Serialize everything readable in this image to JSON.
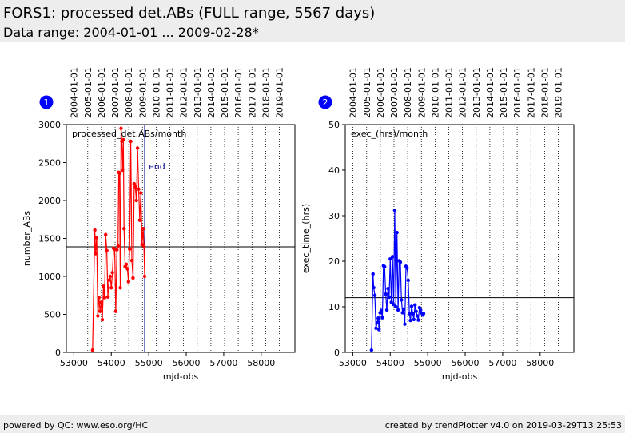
{
  "header": {
    "title": "FORS1: processed det.ABs (FULL range, 5567 days)",
    "subtitle": "Data range: 2004-01-01 ... 2009-02-28*"
  },
  "footer": {
    "left": "powered by QC: www.eso.org/HC",
    "right": "created by trendPlotter v4.0 on 2019-03-29T13:25:53"
  },
  "colors": {
    "header_bg": "#ededed",
    "badge": "#0000ff",
    "series1": "#ff0000",
    "series2": "#0000ff"
  },
  "chart_data": [
    {
      "type": "line",
      "badge": "1",
      "series_label": "processed_det.ABs/month",
      "xlabel": "mjd-obs",
      "ylabel": "number_ABs",
      "xlim": [
        52800,
        58900
      ],
      "ylim": [
        0,
        3000
      ],
      "xticks": [
        53000,
        54000,
        55000,
        56000,
        57000,
        58000
      ],
      "yticks": [
        0,
        500,
        1000,
        1500,
        2000,
        2500,
        3000
      ],
      "date_ticks": [
        "2004-01-01",
        "2005-01-01",
        "2006-01-01",
        "2007-01-01",
        "2008-01-01",
        "2009-01-01",
        "2010-01-01",
        "2011-01-01",
        "2012-01-01",
        "2013-01-01",
        "2014-01-01",
        "2015-01-01",
        "2016-01-01",
        "2017-01-01",
        "2018-01-01",
        "2019-01-01"
      ],
      "date_mjd": [
        53005,
        53371,
        53736,
        54101,
        54466,
        54832,
        55197,
        55562,
        55927,
        56293,
        56658,
        57023,
        57388,
        57754,
        58119,
        58484
      ],
      "reference_line": 1390,
      "end_marker": {
        "x": 54890,
        "label": "end"
      },
      "color": "#ff0000",
      "series": [
        {
          "x": [
            53500,
            53560,
            53580,
            53610,
            53640,
            53670,
            53700,
            53730,
            53760,
            53790,
            53820,
            53850,
            53880,
            53910,
            53940,
            53970,
            54000,
            54030,
            54060,
            54090,
            54120,
            54150,
            54180,
            54200,
            54220,
            54240,
            54260,
            54280,
            54300,
            54320,
            54340,
            54370,
            54400,
            54430,
            54460,
            54490,
            54520,
            54550,
            54580,
            54610,
            54640,
            54670,
            54700,
            54730,
            54760,
            54790,
            54820,
            54850,
            54870,
            54890
          ],
          "y": [
            30,
            1610,
            1300,
            1510,
            480,
            720,
            540,
            660,
            430,
            870,
            720,
            1550,
            1340,
            730,
            950,
            1000,
            850,
            1050,
            1370,
            1360,
            540,
            1350,
            1400,
            2370,
            2360,
            850,
            2950,
            2780,
            2400,
            2800,
            1630,
            1130,
            1160,
            1100,
            930,
            1360,
            2780,
            1210,
            980,
            2220,
            2180,
            2000,
            2690,
            2150,
            1740,
            2100,
            1420,
            1630,
            1400,
            1000
          ]
        }
      ]
    },
    {
      "type": "line",
      "badge": "2",
      "series_label": "exec_(hrs)/month",
      "xlabel": "mjd-obs",
      "ylabel": "exec_time_(hrs)",
      "xlim": [
        52800,
        58900
      ],
      "ylim": [
        0,
        50
      ],
      "xticks": [
        53000,
        54000,
        55000,
        56000,
        57000,
        58000
      ],
      "yticks": [
        0,
        10,
        20,
        30,
        40,
        50
      ],
      "date_ticks": [
        "2004-01-01",
        "2005-01-01",
        "2006-01-01",
        "2007-01-01",
        "2008-01-01",
        "2009-01-01",
        "2010-01-01",
        "2011-01-01",
        "2012-01-01",
        "2013-01-01",
        "2014-01-01",
        "2015-01-01",
        "2016-01-01",
        "2017-01-01",
        "2018-01-01",
        "2019-01-01"
      ],
      "date_mjd": [
        53005,
        53371,
        53736,
        54101,
        54466,
        54832,
        55197,
        55562,
        55927,
        56293,
        56658,
        57023,
        57388,
        57754,
        58119,
        58484
      ],
      "reference_line": 12,
      "color": "#0000ff",
      "series": [
        {
          "x": [
            53500,
            53540,
            53560,
            53590,
            53620,
            53650,
            53680,
            53700,
            53730,
            53760,
            53790,
            53820,
            53850,
            53880,
            53910,
            53940,
            53970,
            54000,
            54030,
            54060,
            54090,
            54120,
            54150,
            54180,
            54210,
            54240,
            54270,
            54300,
            54330,
            54360,
            54390,
            54420,
            54450,
            54480,
            54510,
            54540,
            54570,
            54600,
            54630,
            54660,
            54690,
            54720,
            54750,
            54780,
            54810,
            54840,
            54870,
            54890
          ],
          "y": [
            0.5,
            17.2,
            14.2,
            12.5,
            5.3,
            6.5,
            7.5,
            5.0,
            8.7,
            9.2,
            7.6,
            19.0,
            18.8,
            12.8,
            9.3,
            14.0,
            12.1,
            20.5,
            11.0,
            21.0,
            10.5,
            31.2,
            10.0,
            26.3,
            9.3,
            20.1,
            19.8,
            11.5,
            8.7,
            9.5,
            6.2,
            18.9,
            18.5,
            15.8,
            8.5,
            7.0,
            10.1,
            8.5,
            7.2,
            10.4,
            9.0,
            8.0,
            7.1,
            9.8,
            9.3,
            8.6,
            8.2,
            8.5
          ]
        }
      ]
    }
  ]
}
